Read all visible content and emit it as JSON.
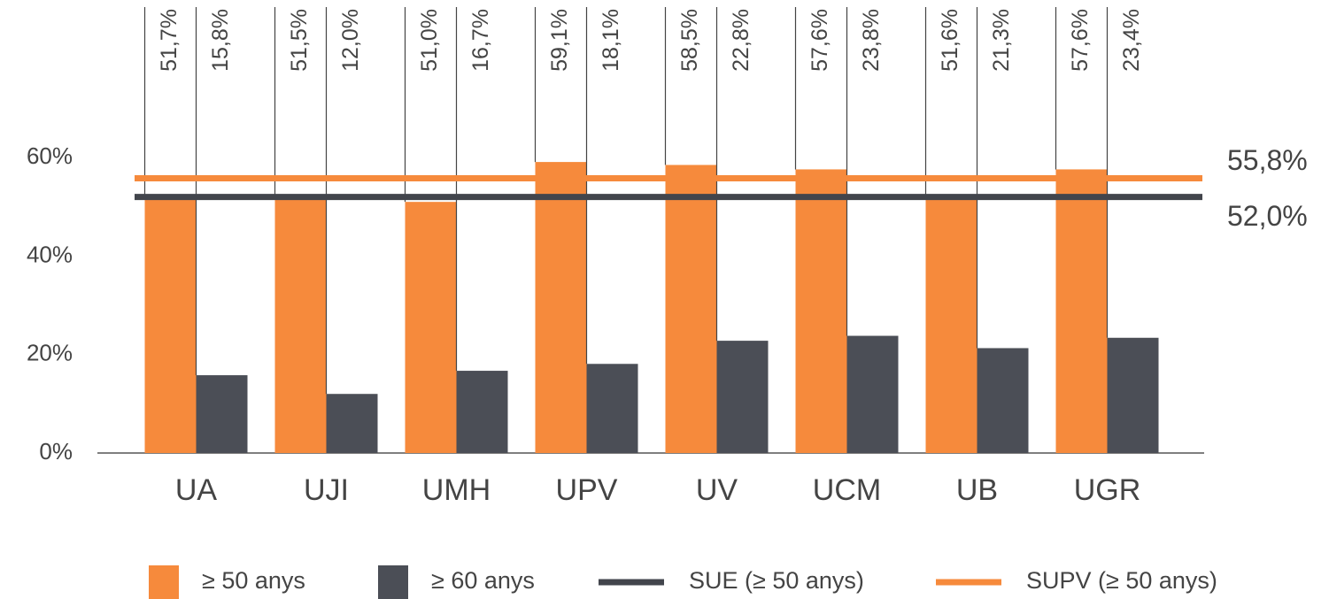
{
  "chart_data": {
    "type": "bar",
    "categories": [
      "UA",
      "UJI",
      "UMH",
      "UPV",
      "UV",
      "UCM",
      "UB",
      "UGR"
    ],
    "series": [
      {
        "name": "≥ 50 anys",
        "color": "#f68a3c",
        "values": [
          51.7,
          51.5,
          51.0,
          59.1,
          58.5,
          57.6,
          51.6,
          57.6
        ],
        "value_labels": [
          "51,7%",
          "51,5%",
          "51,0%",
          "59,1%",
          "58,5%",
          "57,6%",
          "51,6%",
          "57,6%"
        ]
      },
      {
        "name": "≥ 60 anys",
        "color": "#4b4e56",
        "values": [
          15.8,
          12.0,
          16.7,
          18.1,
          22.8,
          23.8,
          21.3,
          23.4
        ],
        "value_labels": [
          "15,8%",
          "12,0%",
          "16,7%",
          "18,1%",
          "22,8%",
          "23,8%",
          "21,3%",
          "23,4%"
        ]
      }
    ],
    "reference_lines": [
      {
        "name": "SUE (≥ 50 anys)",
        "value": 52.0,
        "value_label": "52,0%",
        "color": "#42454c"
      },
      {
        "name": "SUPV (≥ 50 anys)",
        "value": 55.8,
        "value_label": "55,8%",
        "color": "#f68a3c"
      }
    ],
    "ylim": [
      0,
      92
    ],
    "yticks": [
      {
        "value": 0,
        "label": "0%"
      },
      {
        "value": 20,
        "label": "20%"
      },
      {
        "value": 40,
        "label": "40%"
      },
      {
        "value": 60,
        "label": "60%"
      }
    ],
    "legend": "bottom"
  }
}
